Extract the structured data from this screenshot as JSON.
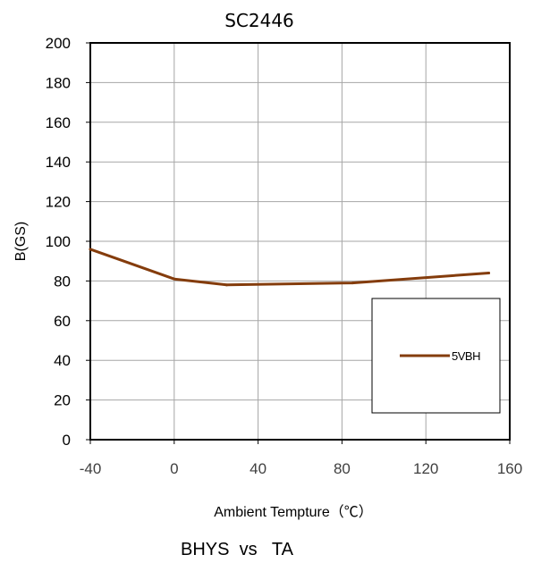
{
  "chart_data": {
    "type": "line",
    "title": "SC2446",
    "xlabel": "Ambient Tempture（℃）",
    "ylabel": "B(GS)",
    "caption": "BHYS  vs   TA",
    "xlim": [
      -40,
      160
    ],
    "ylim": [
      0,
      200
    ],
    "x_ticks": [
      "-40",
      "0",
      "40",
      "80",
      "120",
      "160"
    ],
    "y_ticks": [
      "0",
      "20",
      "40",
      "60",
      "80",
      "100",
      "120",
      "140",
      "160",
      "180",
      "200"
    ],
    "grid": true,
    "legend_position": "bottom-right",
    "series": [
      {
        "name": "5VBH",
        "color": "#843c0c",
        "x": [
          -40,
          0,
          25,
          85,
          150
        ],
        "y": [
          96,
          81,
          78,
          79,
          84
        ]
      }
    ]
  }
}
